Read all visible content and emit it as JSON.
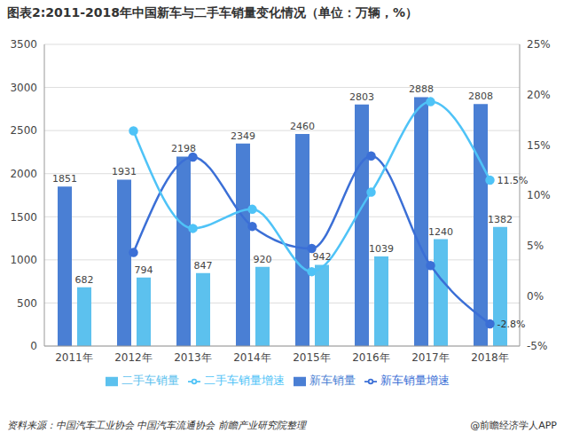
{
  "chart_data": {
    "type": "bar",
    "title": "图表2:2011-2018年中国新车与二手车销量变化情况（单位：万辆，%）",
    "source": "资料来源：中国汽车工业协会 中国汽车流通协会 前瞻产业研究院整理",
    "credit": "@前瞻经济学人APP",
    "categories": [
      "2011年",
      "2012年",
      "2013年",
      "2014年",
      "2015年",
      "2016年",
      "2017年",
      "2018年"
    ],
    "series": [
      {
        "name": "新车销量",
        "type": "bar",
        "color": "#4a7fd4",
        "data_labels": true,
        "values": [
          1851,
          1931,
          2198,
          2349,
          2460,
          2803,
          2888,
          2808
        ]
      },
      {
        "name": "二手车销量",
        "type": "bar",
        "color": "#5cc1ee",
        "data_labels": true,
        "values": [
          682,
          794,
          847,
          920,
          942,
          1039,
          1240,
          1382
        ]
      },
      {
        "name": "新车销量增速",
        "type": "line",
        "axis": "y2",
        "color": "#3b6fd6",
        "marker": "circle",
        "values": [
          null,
          4.3,
          13.8,
          6.9,
          4.7,
          13.9,
          3.0,
          -2.8
        ],
        "value_labels": [
          null,
          null,
          null,
          null,
          null,
          null,
          null,
          "-2.8%"
        ]
      },
      {
        "name": "二手车销量增速",
        "type": "line",
        "axis": "y2",
        "color": "#4fc3f7",
        "marker": "circle",
        "values": [
          null,
          16.4,
          6.7,
          8.6,
          2.4,
          10.3,
          19.3,
          11.5
        ],
        "value_labels": [
          null,
          null,
          null,
          null,
          null,
          null,
          null,
          "11.5%"
        ]
      }
    ],
    "ylim": [
      0,
      3500
    ],
    "yticks": [
      0,
      500,
      1000,
      1500,
      2000,
      2500,
      3000,
      3500
    ],
    "y2lim": [
      -5,
      25
    ],
    "y2ticks": [
      {
        "value": -5,
        "label": "-5%"
      },
      {
        "value": 0,
        "label": "0%"
      },
      {
        "value": 5,
        "label": "5%"
      },
      {
        "value": 10,
        "label": "10%"
      },
      {
        "value": 15,
        "label": "15%"
      },
      {
        "value": 20,
        "label": "20%"
      },
      {
        "value": 25,
        "label": "25%"
      }
    ],
    "grid": true,
    "legend": "bottom"
  }
}
